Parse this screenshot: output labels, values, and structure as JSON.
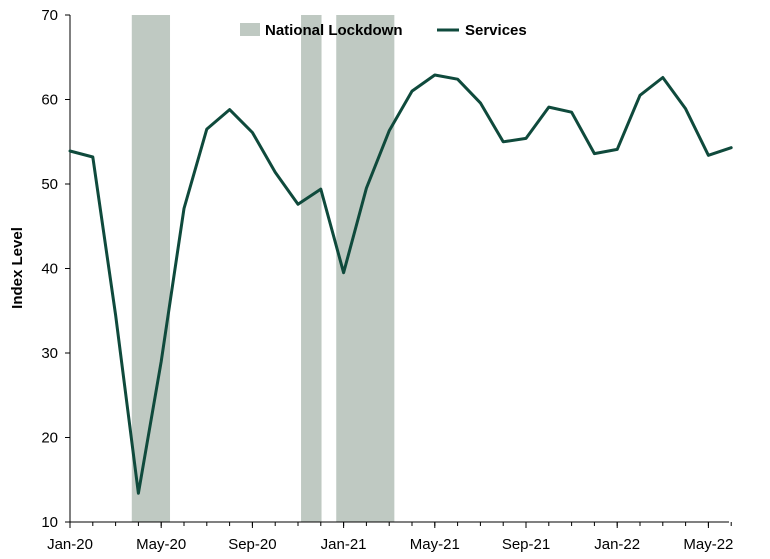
{
  "chart_data": {
    "type": "line",
    "ylabel": "Index Level",
    "ylim": [
      10,
      70
    ],
    "yticks": [
      10,
      20,
      30,
      40,
      50,
      60,
      70
    ],
    "x_ticks": [
      "Jan-20",
      "May-20",
      "Sep-20",
      "Jan-21",
      "May-21",
      "Sep-21",
      "Jan-22",
      "May-22"
    ],
    "x": [
      "2020-01",
      "2020-02",
      "2020-03",
      "2020-04",
      "2020-05",
      "2020-06",
      "2020-07",
      "2020-08",
      "2020-09",
      "2020-10",
      "2020-11",
      "2020-12",
      "2021-01",
      "2021-02",
      "2021-03",
      "2021-04",
      "2021-05",
      "2021-06",
      "2021-07",
      "2021-08",
      "2021-09",
      "2021-10",
      "2021-11",
      "2021-12",
      "2022-01",
      "2022-02",
      "2022-03",
      "2022-04",
      "2022-05",
      "2022-06"
    ],
    "series": [
      {
        "name": "Services",
        "color": "#0f4a3c",
        "values": [
          53.9,
          53.2,
          34.5,
          13.4,
          29.0,
          47.1,
          56.5,
          58.8,
          56.1,
          51.4,
          47.6,
          49.4,
          39.5,
          49.5,
          56.3,
          61.0,
          62.9,
          62.4,
          59.6,
          55.0,
          55.4,
          59.1,
          58.5,
          53.6,
          54.1,
          60.5,
          62.6,
          58.9,
          53.4,
          54.3
        ]
      }
    ],
    "shaded_periods": {
      "name": "National Lockdown",
      "color": "#bfc9c2",
      "ranges": [
        [
          "2020-03-23",
          "2020-05-13"
        ],
        [
          "2020-11-05",
          "2020-12-02"
        ],
        [
          "2020-12-22",
          "2021-03-08"
        ]
      ]
    },
    "grid": false,
    "legend_position": "top-center",
    "legend": [
      {
        "label": "National Lockdown",
        "type": "patch",
        "color": "#bfc9c2"
      },
      {
        "label": "Services",
        "type": "line",
        "color": "#0f4a3c"
      }
    ]
  }
}
